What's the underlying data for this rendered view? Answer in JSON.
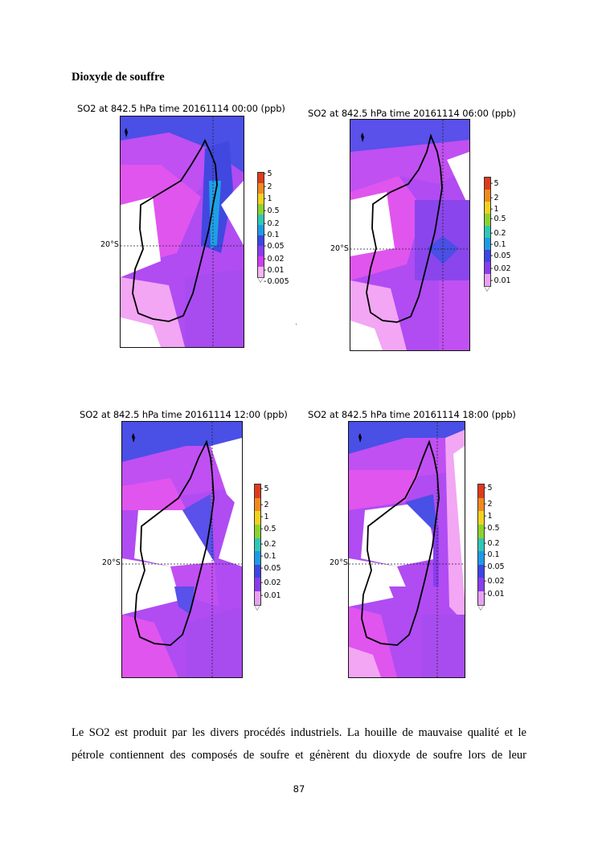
{
  "document": {
    "heading": "Dioxyde de souffre",
    "page_number": "87",
    "paragraph_lines": [
      "Le SO2 est produit par les divers procédés industriels. La houille de mauvaise qualité et le",
      "pétrole contiennent des composés de soufre et génèrent du dioxyde de soufre lors de leur"
    ]
  },
  "figures": [
    {
      "title": "SO2 at 842.5 hPa time 20161114 00:00 (ppb)",
      "lat_label": "20°S",
      "colorbar_ticks": [
        "5",
        "2",
        "1",
        "0.5",
        "0.2",
        "0.1",
        "0.05",
        "0.02",
        "0.01",
        "0.005"
      ]
    },
    {
      "title": "SO2 at 842.5 hPa time 20161114 06:00 (ppb)",
      "lat_label": "20°S",
      "colorbar_ticks": [
        "5",
        "2",
        "1",
        "0.5",
        "0.2",
        "0.1",
        "0.05",
        "0.02",
        "0.01"
      ]
    },
    {
      "title": "SO2 at 842.5 hPa time 20161114 12:00 (ppb)",
      "lat_label": "20°S",
      "colorbar_ticks": [
        "5",
        "2",
        "1",
        "0.5",
        "0.2",
        "0.1",
        "0.05",
        "0.02",
        "0.01"
      ]
    },
    {
      "title": "SO2 at 842.5 hPa time 20161114 18:00 (ppb)",
      "lat_label": "20°S",
      "colorbar_ticks": [
        "5",
        "2",
        "1",
        "0.5",
        "0.2",
        "0.1",
        "0.05",
        "0.02",
        "0.01"
      ]
    }
  ],
  "colors": {
    "colorbar_scale": [
      "#e03a1e",
      "#f08a1e",
      "#f2d21e",
      "#8cd230",
      "#2fc8b4",
      "#1e9be6",
      "#3c46e6",
      "#8a3cf0",
      "#d23cf0",
      "#f6b4f6"
    ],
    "field_high": "#4a4fe6",
    "field_mid": "#b04cf2",
    "field_low": "#e055ee",
    "field_min": "#ffffff"
  }
}
